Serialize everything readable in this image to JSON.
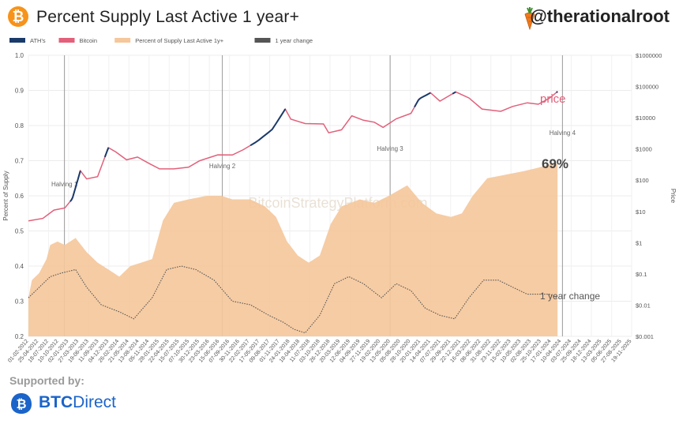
{
  "header": {
    "logo_glyph": "₿",
    "title": "Percent Supply Last Active 1 year+",
    "handle": "@therationalroot"
  },
  "footer": {
    "supported_by": "Supported by:",
    "brand_bold": "BTC",
    "brand_regular": "Direct"
  },
  "watermark": "BitcoinStrategyPlatform.com",
  "colors": {
    "ath": "#1a3a6a",
    "bitcoin": "#e2607a",
    "supply_fill": "#f5c79a",
    "change": "#555555",
    "brand": "#1b64c9",
    "logo": "#f7931a"
  },
  "chart_data": {
    "type": "area",
    "ylabel": "Percent of Supply",
    "y2label": "Price",
    "ylim": [
      0.2,
      1.0
    ],
    "yticks": [
      "0.2",
      "0.3",
      "0.4",
      "0.5",
      "0.6",
      "0.7",
      "0.8",
      "0.9",
      "1.0"
    ],
    "y2ticks": [
      "$0.001",
      "$0.01",
      "$0.1",
      "$1",
      "$10",
      "$100",
      "$1000",
      "$10000",
      "$100000",
      "$1000000"
    ],
    "y2lim": [
      0.001,
      1000000
    ],
    "y2scale": "log",
    "grid": true,
    "legend_position": "top-left",
    "legend": [
      "ATH's",
      "Bitcoin",
      "Percent of Supply Last Active 1y+",
      "1 year change"
    ],
    "xticks": [
      "01-02-2012",
      "25-04-2012",
      "18-07-2012",
      "10-10-2012",
      "02-01-2013",
      "27-03-2013",
      "19-06-2013",
      "11-09-2013",
      "04-12-2013",
      "26-02-2014",
      "21-05-2014",
      "13-08-2014",
      "05-11-2014",
      "28-01-2015",
      "22-04-2015",
      "15-07-2015",
      "07-10-2015",
      "30-12-2015",
      "23-03-2016",
      "15-06-2016",
      "07-09-2016",
      "30-11-2016",
      "22-02-2017",
      "17-05-2017",
      "09-08-2017",
      "01-11-2017",
      "24-01-2018",
      "18-04-2018",
      "11-07-2018",
      "03-10-2018",
      "26-12-2018",
      "20-03-2019",
      "12-06-2019",
      "04-09-2019",
      "27-11-2019",
      "19-02-2020",
      "13-05-2020",
      "05-08-2020",
      "28-10-2020",
      "20-01-2021",
      "14-04-2021",
      "07-07-2021",
      "29-09-2021",
      "22-12-2021",
      "16-03-2022",
      "08-06-2022",
      "31-08-2022",
      "23-11-2022",
      "15-02-2023",
      "10-05-2023",
      "02-08-2023",
      "25-10-2023",
      "17-01-2024",
      "10-04-2024",
      "03-07-2024",
      "25-09-2024",
      "18-12-2024",
      "13-03-2025",
      "05-06-2025",
      "27-08-2025",
      "19-11-2025"
    ],
    "x_start": "2012-02-01",
    "x_end": "2025-11-19",
    "halvings": [
      {
        "label": "Halving 1",
        "date": "2012-11-28"
      },
      {
        "label": "Halving 2",
        "date": "2016-07-09"
      },
      {
        "label": "Halving 3",
        "date": "2020-05-11"
      },
      {
        "label": "Halving 4",
        "date": "2024-04-20"
      }
    ],
    "annotations": {
      "price": "price",
      "latest_percent": "69%",
      "change": "1 year change"
    },
    "supply_series": {
      "name": "Percent of Supply Last Active 1y+",
      "points": [
        [
          "2012-02-01",
          0.31
        ],
        [
          "2012-03-01",
          0.36
        ],
        [
          "2012-05-01",
          0.38
        ],
        [
          "2012-07-01",
          0.42
        ],
        [
          "2012-08-01",
          0.46
        ],
        [
          "2012-10-01",
          0.47
        ],
        [
          "2012-12-01",
          0.46
        ],
        [
          "2013-03-01",
          0.48
        ],
        [
          "2013-06-01",
          0.44
        ],
        [
          "2013-09-01",
          0.41
        ],
        [
          "2013-12-01",
          0.39
        ],
        [
          "2014-03-01",
          0.37
        ],
        [
          "2014-06-01",
          0.4
        ],
        [
          "2014-09-01",
          0.41
        ],
        [
          "2014-12-01",
          0.42
        ],
        [
          "2015-03-01",
          0.53
        ],
        [
          "2015-06-01",
          0.58
        ],
        [
          "2015-10-01",
          0.59
        ],
        [
          "2016-03-01",
          0.6
        ],
        [
          "2016-07-01",
          0.6
        ],
        [
          "2016-10-01",
          0.59
        ],
        [
          "2017-03-01",
          0.59
        ],
        [
          "2017-07-01",
          0.57
        ],
        [
          "2017-10-01",
          0.54
        ],
        [
          "2018-01-01",
          0.47
        ],
        [
          "2018-04-01",
          0.43
        ],
        [
          "2018-07-01",
          0.41
        ],
        [
          "2018-10-01",
          0.43
        ],
        [
          "2019-01-01",
          0.52
        ],
        [
          "2019-04-01",
          0.57
        ],
        [
          "2019-09-01",
          0.59
        ],
        [
          "2020-01-01",
          0.58
        ],
        [
          "2020-05-01",
          0.6
        ],
        [
          "2020-10-01",
          0.63
        ],
        [
          "2021-02-01",
          0.58
        ],
        [
          "2021-06-01",
          0.55
        ],
        [
          "2021-10-01",
          0.54
        ],
        [
          "2022-01-01",
          0.55
        ],
        [
          "2022-04-01",
          0.6
        ],
        [
          "2022-08-01",
          0.65
        ],
        [
          "2023-01-01",
          0.66
        ],
        [
          "2023-06-01",
          0.67
        ],
        [
          "2023-10-01",
          0.68
        ],
        [
          "2024-01-01",
          0.69
        ],
        [
          "2024-03-10",
          0.69
        ]
      ]
    },
    "change_series": {
      "name": "1 year change",
      "points": [
        [
          "2012-02-01",
          0.31
        ],
        [
          "2012-08-01",
          0.37
        ],
        [
          "2012-11-01",
          0.38
        ],
        [
          "2013-03-01",
          0.39
        ],
        [
          "2013-06-01",
          0.34
        ],
        [
          "2013-10-01",
          0.29
        ],
        [
          "2014-03-01",
          0.27
        ],
        [
          "2014-07-01",
          0.25
        ],
        [
          "2014-12-01",
          0.31
        ],
        [
          "2015-04-01",
          0.39
        ],
        [
          "2015-08-01",
          0.4
        ],
        [
          "2015-12-01",
          0.39
        ],
        [
          "2016-05-01",
          0.36
        ],
        [
          "2016-10-01",
          0.3
        ],
        [
          "2017-03-01",
          0.29
        ],
        [
          "2017-08-01",
          0.26
        ],
        [
          "2017-12-01",
          0.24
        ],
        [
          "2018-03-01",
          0.22
        ],
        [
          "2018-06-01",
          0.21
        ],
        [
          "2018-10-01",
          0.26
        ],
        [
          "2019-02-01",
          0.35
        ],
        [
          "2019-06-01",
          0.37
        ],
        [
          "2019-10-01",
          0.35
        ],
        [
          "2020-03-01",
          0.31
        ],
        [
          "2020-07-01",
          0.35
        ],
        [
          "2020-11-01",
          0.33
        ],
        [
          "2021-03-01",
          0.28
        ],
        [
          "2021-07-01",
          0.26
        ],
        [
          "2021-11-01",
          0.25
        ],
        [
          "2022-03-01",
          0.31
        ],
        [
          "2022-07-01",
          0.36
        ],
        [
          "2022-11-01",
          0.36
        ],
        [
          "2023-03-01",
          0.34
        ],
        [
          "2023-07-01",
          0.32
        ],
        [
          "2024-01-01",
          0.32
        ],
        [
          "2024-03-10",
          0.31
        ]
      ]
    },
    "price_series": {
      "name": "Bitcoin",
      "points": [
        [
          "2012-02-01",
          5
        ],
        [
          "2012-06-01",
          6
        ],
        [
          "2012-09-01",
          11
        ],
        [
          "2012-12-01",
          13
        ],
        [
          "2013-02-01",
          25
        ],
        [
          "2013-04-10",
          200
        ],
        [
          "2013-06-01",
          110
        ],
        [
          "2013-09-01",
          130
        ],
        [
          "2013-11-30",
          1100
        ],
        [
          "2014-02-01",
          800
        ],
        [
          "2014-05-01",
          450
        ],
        [
          "2014-08-01",
          550
        ],
        [
          "2014-11-01",
          350
        ],
        [
          "2015-02-01",
          230
        ],
        [
          "2015-06-01",
          230
        ],
        [
          "2015-10-01",
          260
        ],
        [
          "2016-01-01",
          420
        ],
        [
          "2016-06-01",
          650
        ],
        [
          "2016-10-01",
          640
        ],
        [
          "2017-01-01",
          950
        ],
        [
          "2017-05-01",
          1800
        ],
        [
          "2017-09-01",
          4300
        ],
        [
          "2017-12-17",
          19000
        ],
        [
          "2018-02-01",
          9000
        ],
        [
          "2018-06-01",
          6500
        ],
        [
          "2018-11-01",
          6300
        ],
        [
          "2018-12-15",
          3300
        ],
        [
          "2019-04-01",
          4100
        ],
        [
          "2019-06-26",
          11500
        ],
        [
          "2019-10-01",
          8300
        ],
        [
          "2020-01-01",
          7200
        ],
        [
          "2020-03-13",
          4900
        ],
        [
          "2020-07-01",
          9200
        ],
        [
          "2020-11-01",
          13800
        ],
        [
          "2021-01-08",
          40000
        ],
        [
          "2021-04-14",
          63000
        ],
        [
          "2021-07-01",
          34000
        ],
        [
          "2021-11-10",
          67000
        ],
        [
          "2022-03-01",
          43000
        ],
        [
          "2022-06-18",
          19000
        ],
        [
          "2022-11-21",
          16000
        ],
        [
          "2023-03-01",
          23000
        ],
        [
          "2023-07-01",
          30000
        ],
        [
          "2023-10-01",
          27000
        ],
        [
          "2024-01-01",
          42000
        ],
        [
          "2024-03-10",
          69000
        ]
      ]
    },
    "ath_segments": [
      [
        "2013-01-15",
        "2013-04-10"
      ],
      [
        "2013-11-01",
        "2013-11-30"
      ],
      [
        "2017-03-01",
        "2017-12-17"
      ],
      [
        "2020-12-01",
        "2021-04-14"
      ],
      [
        "2021-10-15",
        "2021-11-10"
      ],
      [
        "2024-03-01",
        "2024-03-10"
      ]
    ]
  }
}
